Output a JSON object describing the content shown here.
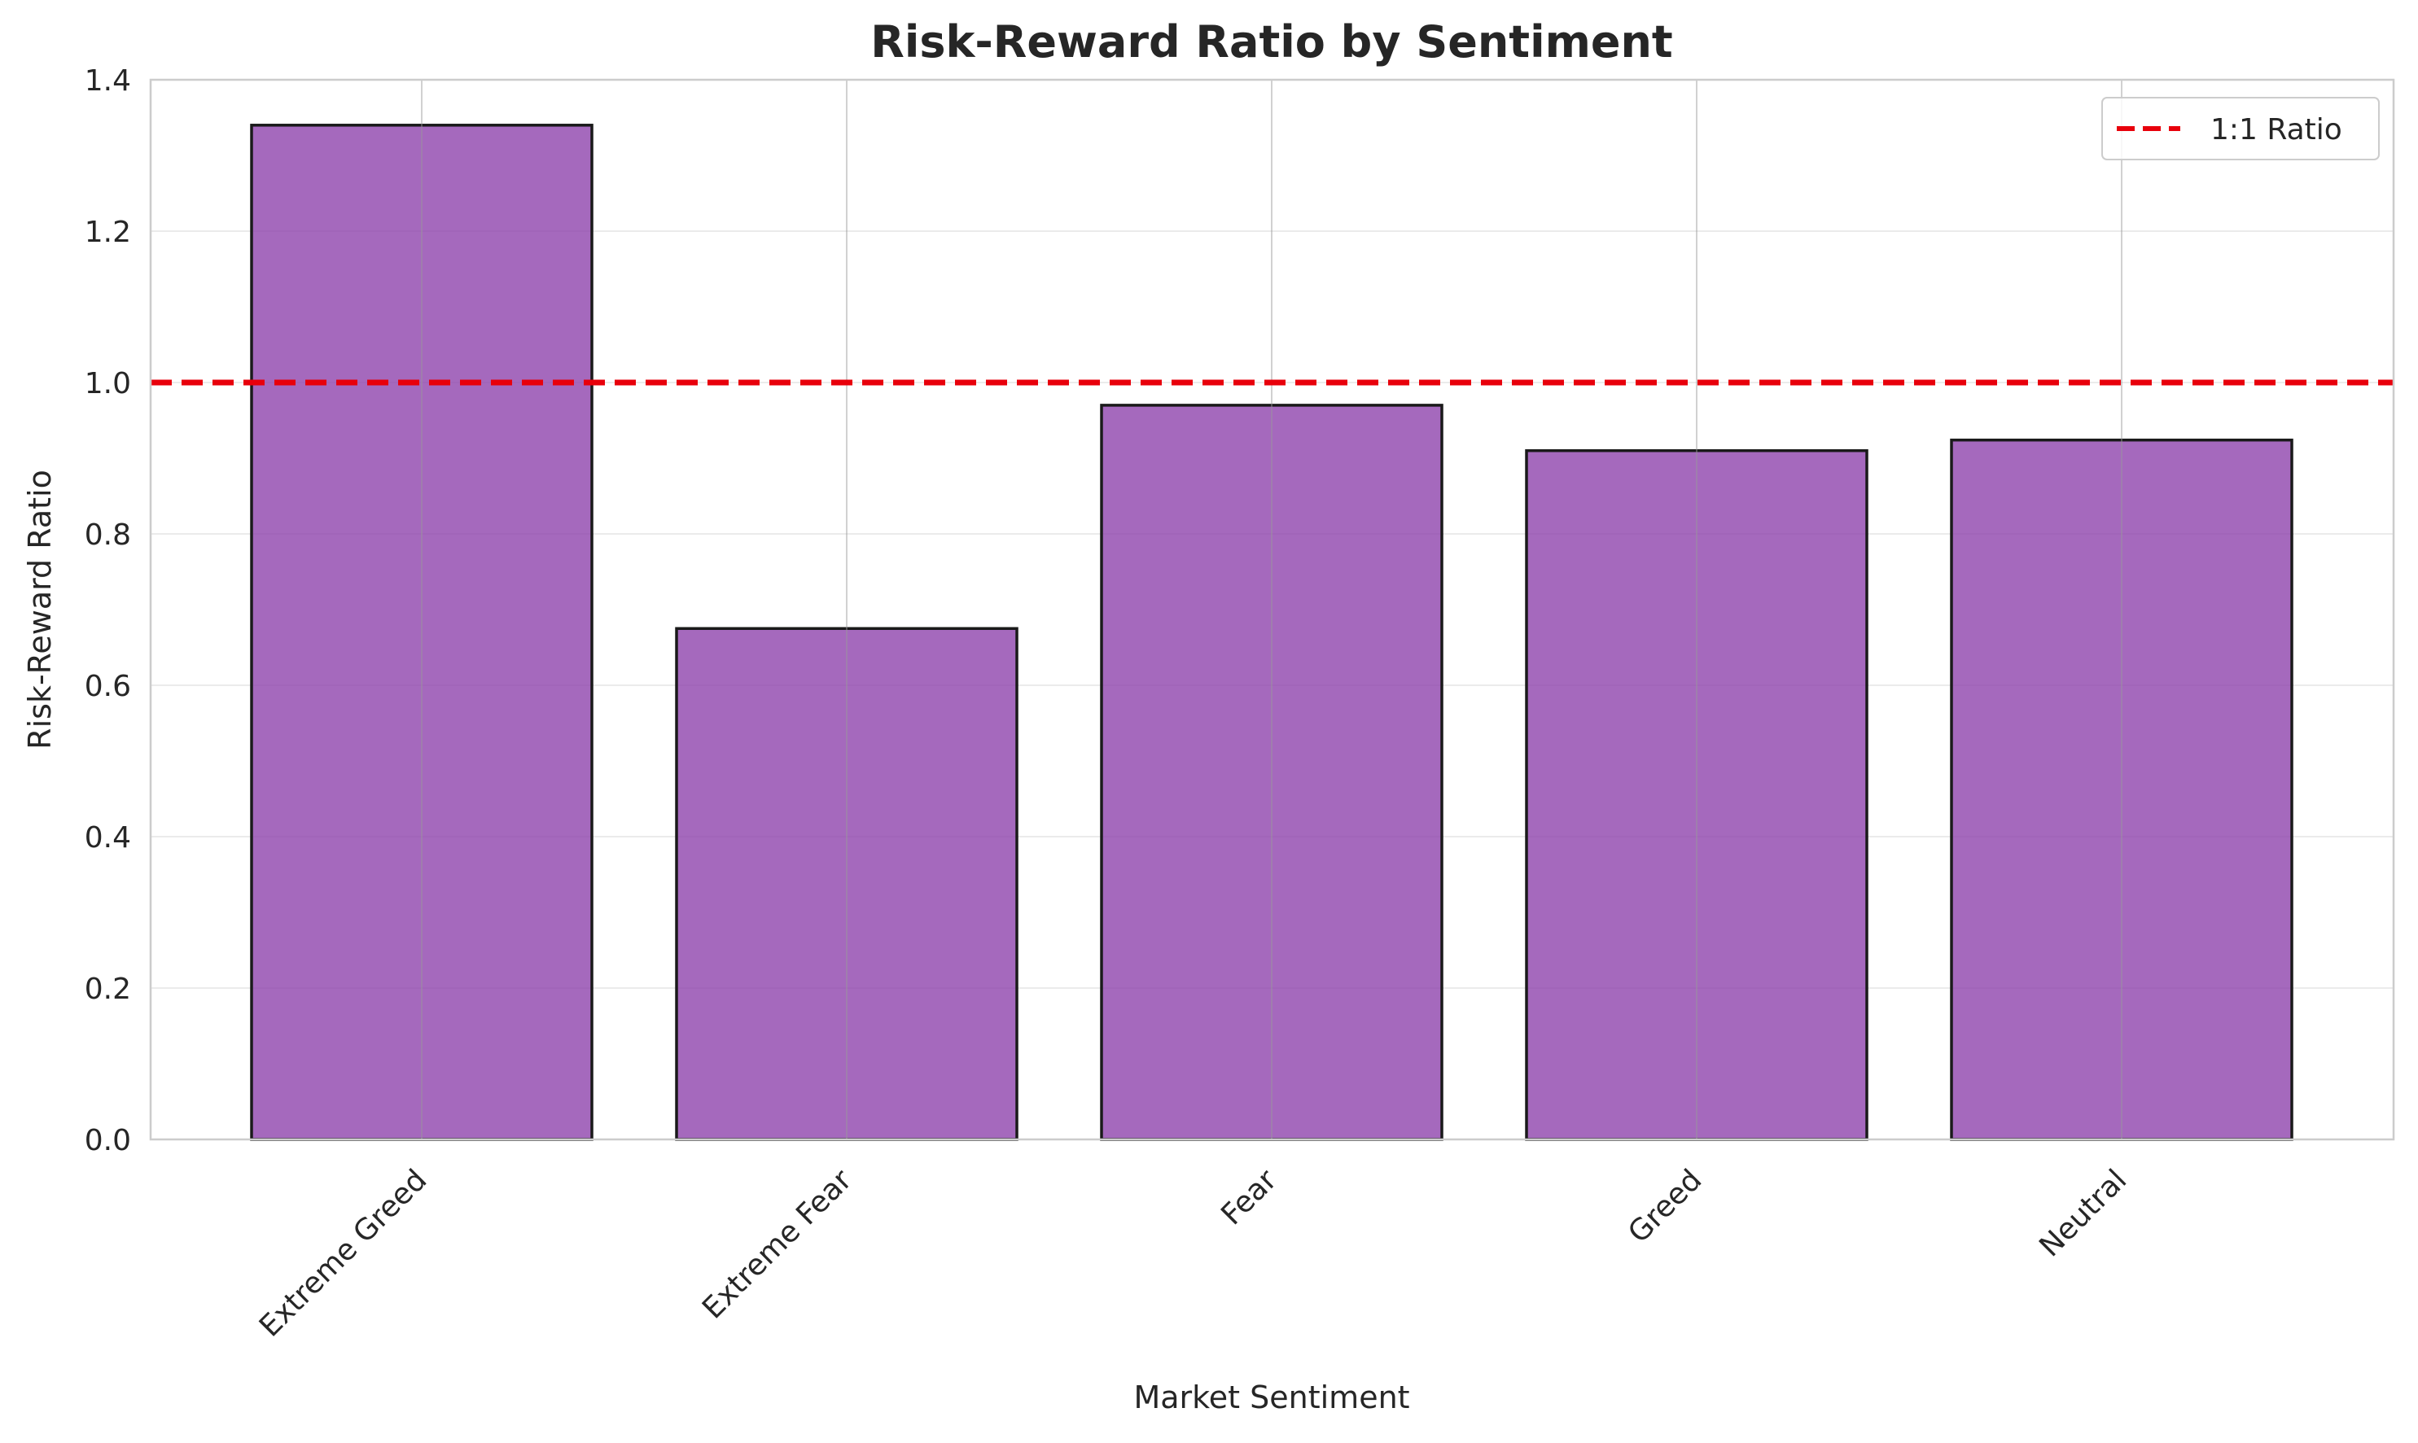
{
  "chart_data": {
    "type": "bar",
    "title": "Risk-Reward Ratio by Sentiment",
    "xlabel": "Market Sentiment",
    "ylabel": "Risk-Reward Ratio",
    "categories": [
      "Extreme Greed",
      "Extreme Fear",
      "Fear",
      "Greed",
      "Neutral"
    ],
    "values": [
      1.34,
      0.675,
      0.97,
      0.91,
      0.924
    ],
    "ylim": [
      0,
      1.4
    ],
    "yticks": [
      0.0,
      0.2,
      0.4,
      0.6,
      0.8,
      1.0,
      1.2,
      1.4
    ],
    "ytick_labels": [
      "0.0",
      "0.2",
      "0.4",
      "0.6",
      "0.8",
      "1.0",
      "1.2",
      "1.4"
    ],
    "grid": true,
    "reference_line": {
      "value": 1.0,
      "label": "1:1 Ratio",
      "style": "dashed",
      "color": "#e8000b"
    },
    "legend": {
      "placement": "top-right",
      "entries": [
        "1:1 Ratio"
      ]
    },
    "colors": {
      "bar_fill": "#8e44ad",
      "bar_opacity": 0.8,
      "bar_edge": "#1a1a1a",
      "grid": "#cccccc",
      "axes": "#cccccc",
      "reference_line": "#e8000b"
    }
  }
}
